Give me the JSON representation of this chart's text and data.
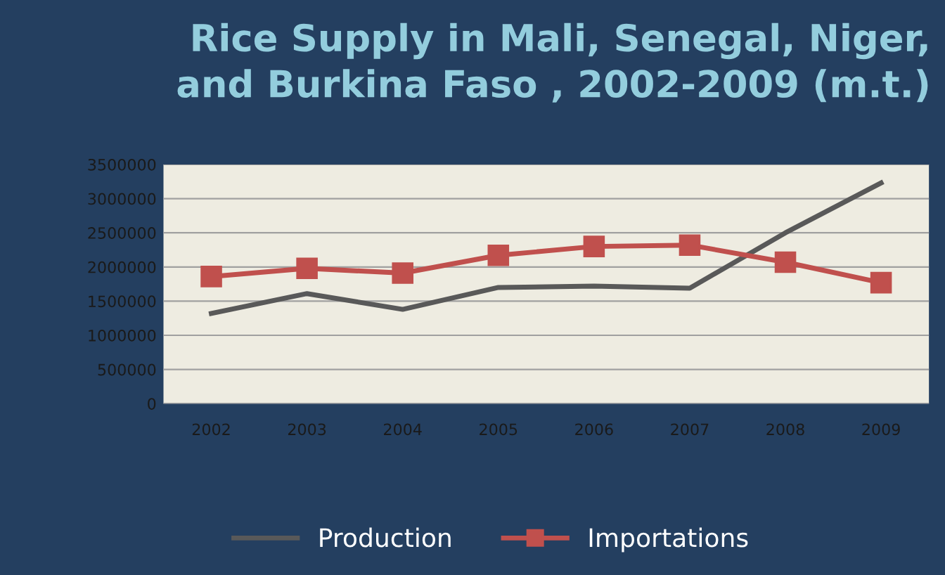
{
  "chart_data": {
    "type": "line",
    "title": "Rice Supply in Mali, Senegal, Niger,\nand Burkina Faso , 2002-2009 (m.t.)",
    "categories": [
      "2002",
      "2003",
      "2004",
      "2005",
      "2006",
      "2007",
      "2008",
      "2009"
    ],
    "series": [
      {
        "name": "Production",
        "color": "#595959",
        "marker": "none",
        "values": [
          1320000,
          1610000,
          1380000,
          1700000,
          1720000,
          1690000,
          2500000,
          3230000
        ]
      },
      {
        "name": "Importations",
        "color": "#c0504d",
        "marker": "square",
        "values": [
          1860000,
          1980000,
          1910000,
          2170000,
          2300000,
          2320000,
          2070000,
          1770000
        ]
      }
    ],
    "ylim": [
      0,
      3500000
    ],
    "yticks": [
      0,
      500000,
      1000000,
      1500000,
      2000000,
      2500000,
      3000000,
      3500000
    ],
    "grid": "y",
    "legend": "bottom"
  }
}
